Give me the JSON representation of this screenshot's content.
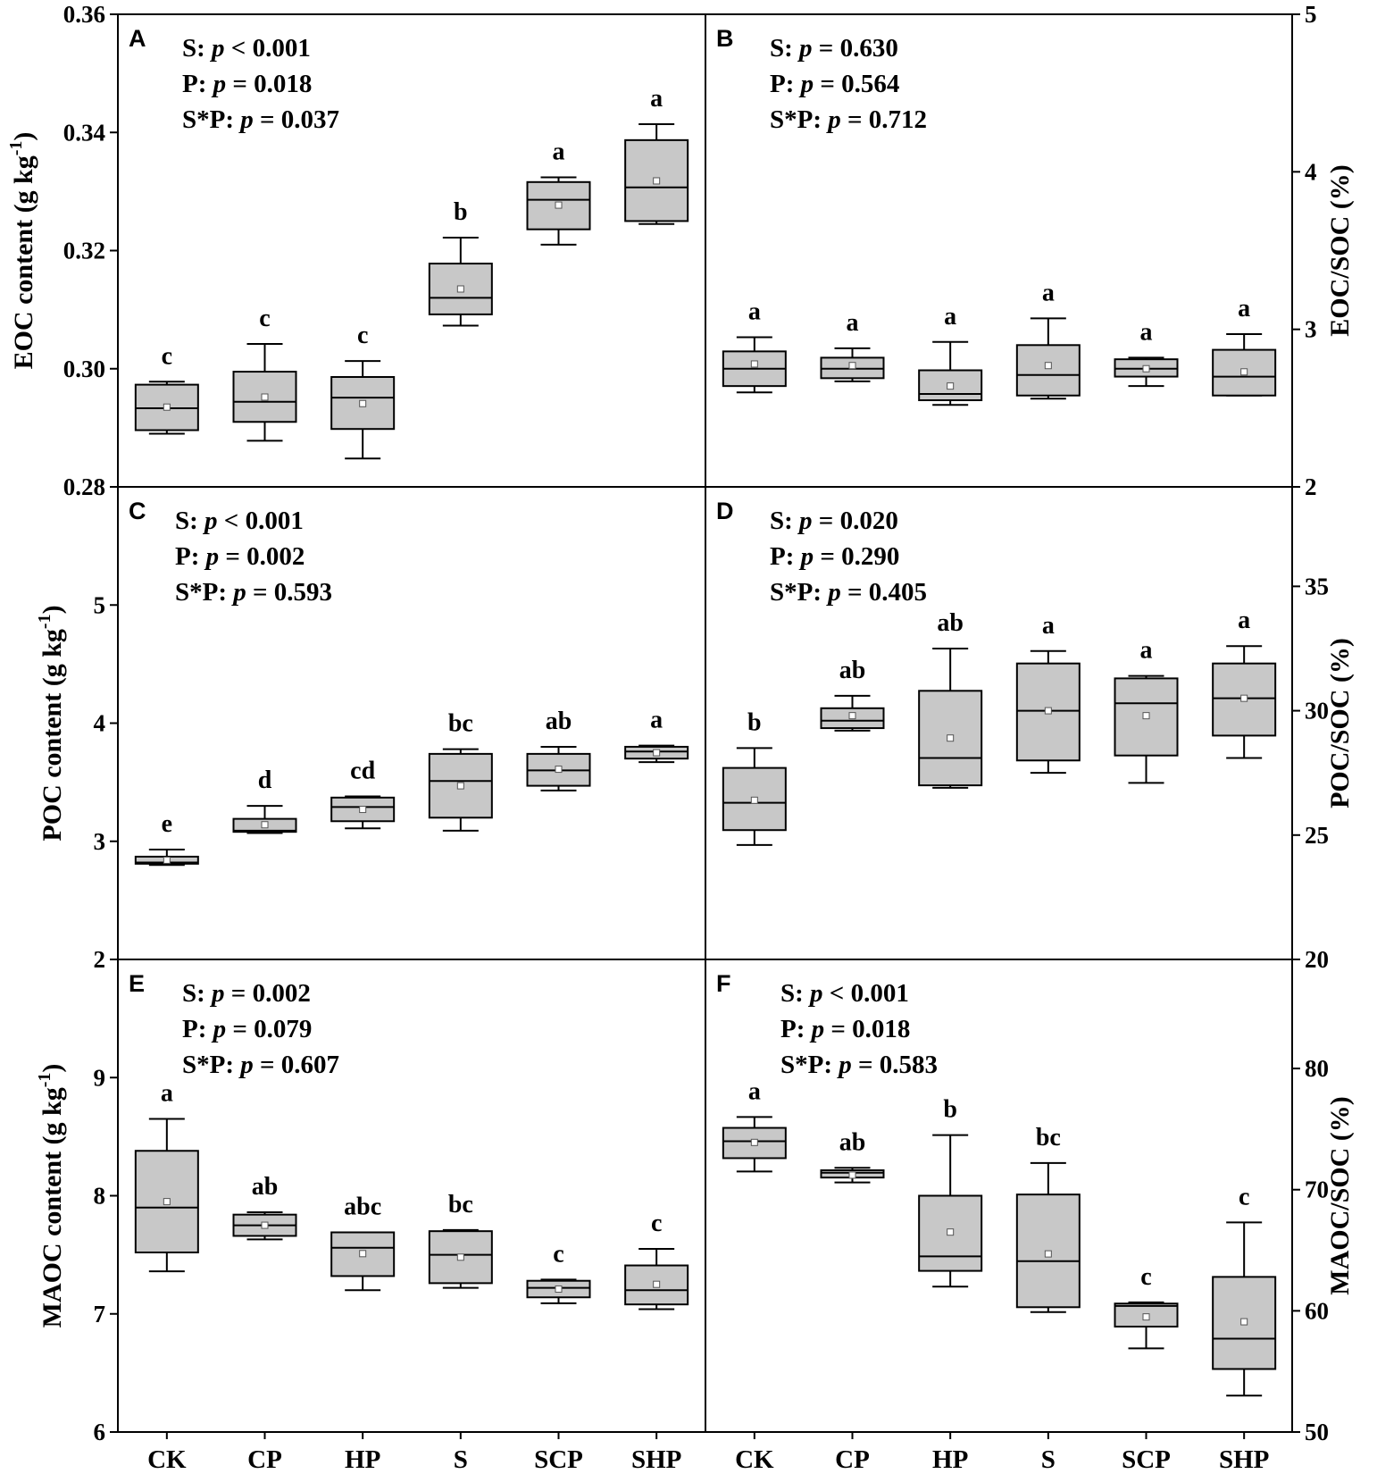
{
  "chart_data": [
    {
      "type": "box",
      "panel": "A",
      "ylabel": "EOC content (g kg-1)",
      "ylabel_main": "EOC content (g kg",
      "ylabel_sup": "-1",
      "ylabel_close": ")",
      "ylim": [
        0.28,
        0.36
      ],
      "ticks": [
        0.28,
        0.3,
        0.32,
        0.34,
        0.36
      ],
      "tick_labels": [
        "0.28",
        "0.30",
        "0.32",
        "0.34",
        "0.36"
      ],
      "stats": [
        {
          "term": "S: ",
          "p": "p",
          "rest": " < 0.001"
        },
        {
          "term": "P: ",
          "p": "p",
          "rest": " = 0.018"
        },
        {
          "term": "S*P: ",
          "p": "p",
          "rest": " = 0.037"
        }
      ],
      "boxes": [
        {
          "category": "CK",
          "min": 0.289,
          "q1": 0.2896,
          "median": 0.2933,
          "q3": 0.2973,
          "max": 0.2978,
          "mean": 0.2935,
          "sig": "c"
        },
        {
          "category": "CP",
          "min": 0.2878,
          "q1": 0.291,
          "median": 0.2944,
          "q3": 0.2995,
          "max": 0.3042,
          "mean": 0.2952,
          "sig": "c"
        },
        {
          "category": "HP",
          "min": 0.2848,
          "q1": 0.2898,
          "median": 0.2951,
          "q3": 0.2986,
          "max": 0.3013,
          "mean": 0.2941,
          "sig": "c"
        },
        {
          "category": "S",
          "min": 0.3073,
          "q1": 0.3092,
          "median": 0.312,
          "q3": 0.3178,
          "max": 0.3222,
          "mean": 0.3135,
          "sig": "b"
        },
        {
          "category": "SCP",
          "min": 0.321,
          "q1": 0.3236,
          "median": 0.3286,
          "q3": 0.3316,
          "max": 0.3324,
          "mean": 0.3277,
          "sig": "a"
        },
        {
          "category": "SHP",
          "min": 0.3245,
          "q1": 0.325,
          "median": 0.3307,
          "q3": 0.3387,
          "max": 0.3414,
          "mean": 0.3318,
          "sig": "a"
        }
      ]
    },
    {
      "type": "box",
      "panel": "B",
      "ylabel": "EOC/SOC (%)",
      "ylim": [
        2,
        5
      ],
      "ticks": [
        2,
        3,
        4,
        5
      ],
      "tick_labels": [
        "2",
        "3",
        "4",
        "5"
      ],
      "stats": [
        {
          "term": "S: ",
          "p": "p",
          "rest": " = 0.630"
        },
        {
          "term": "P: ",
          "p": "p",
          "rest": " = 0.564"
        },
        {
          "term": "S*P: ",
          "p": "p",
          "rest": " = 0.712"
        }
      ],
      "boxes": [
        {
          "category": "CK",
          "min": 2.6,
          "q1": 2.64,
          "median": 2.75,
          "q3": 2.86,
          "max": 2.95,
          "mean": 2.78,
          "sig": "a"
        },
        {
          "category": "CP",
          "min": 2.67,
          "q1": 2.69,
          "median": 2.75,
          "q3": 2.82,
          "max": 2.88,
          "mean": 2.77,
          "sig": "a"
        },
        {
          "category": "HP",
          "min": 2.52,
          "q1": 2.55,
          "median": 2.59,
          "q3": 2.74,
          "max": 2.92,
          "mean": 2.64,
          "sig": "a"
        },
        {
          "category": "S",
          "min": 2.56,
          "q1": 2.58,
          "median": 2.71,
          "q3": 2.9,
          "max": 3.07,
          "mean": 2.77,
          "sig": "a"
        },
        {
          "category": "SCP",
          "min": 2.64,
          "q1": 2.7,
          "median": 2.75,
          "q3": 2.81,
          "max": 2.82,
          "mean": 2.75,
          "sig": "a"
        },
        {
          "category": "SHP",
          "min": 2.58,
          "q1": 2.58,
          "median": 2.7,
          "q3": 2.87,
          "max": 2.97,
          "mean": 2.73,
          "sig": "a"
        }
      ]
    },
    {
      "type": "box",
      "panel": "C",
      "ylabel": "POC content (g kg-1)",
      "ylabel_main": "POC content (g kg",
      "ylabel_sup": "-1",
      "ylabel_close": ")",
      "ylim": [
        2,
        6
      ],
      "ticks": [
        2,
        3,
        4,
        5
      ],
      "tick_labels": [
        "2",
        "3",
        "4",
        "5"
      ],
      "stats": [
        {
          "term": "S: ",
          "p": "p",
          "rest": " < 0.001"
        },
        {
          "term": "P: ",
          "p": "p",
          "rest": " = 0.002"
        },
        {
          "term": "S*P: ",
          "p": "p",
          "rest": " = 0.593"
        }
      ],
      "boxes": [
        {
          "category": "CK",
          "min": 2.8,
          "q1": 2.81,
          "median": 2.82,
          "q3": 2.87,
          "max": 2.93,
          "mean": 2.84,
          "sig": "e"
        },
        {
          "category": "CP",
          "min": 3.07,
          "q1": 3.08,
          "median": 3.09,
          "q3": 3.19,
          "max": 3.3,
          "mean": 3.14,
          "sig": "d"
        },
        {
          "category": "HP",
          "min": 3.11,
          "q1": 3.17,
          "median": 3.29,
          "q3": 3.37,
          "max": 3.38,
          "mean": 3.27,
          "sig": "cd"
        },
        {
          "category": "S",
          "min": 3.09,
          "q1": 3.2,
          "median": 3.51,
          "q3": 3.74,
          "max": 3.78,
          "mean": 3.47,
          "sig": "bc"
        },
        {
          "category": "SCP",
          "min": 3.43,
          "q1": 3.47,
          "median": 3.6,
          "q3": 3.74,
          "max": 3.8,
          "mean": 3.61,
          "sig": "ab"
        },
        {
          "category": "SHP",
          "min": 3.67,
          "q1": 3.7,
          "median": 3.76,
          "q3": 3.8,
          "max": 3.81,
          "mean": 3.75,
          "sig": "a"
        }
      ]
    },
    {
      "type": "box",
      "panel": "D",
      "ylabel": "POC/SOC (%)",
      "ylim": [
        20,
        39
      ],
      "ticks": [
        20,
        25,
        30,
        35
      ],
      "tick_labels": [
        "20",
        "25",
        "30",
        "35"
      ],
      "stats": [
        {
          "term": "S: ",
          "p": "p",
          "rest": " = 0.020"
        },
        {
          "term": "P: ",
          "p": "p",
          "rest": " = 0.290"
        },
        {
          "term": "S*P: ",
          "p": "p",
          "rest": " = 0.405"
        }
      ],
      "boxes": [
        {
          "category": "CK",
          "min": 24.6,
          "q1": 25.2,
          "median": 26.3,
          "q3": 27.7,
          "max": 28.5,
          "mean": 26.4,
          "sig": "b"
        },
        {
          "category": "CP",
          "min": 29.2,
          "q1": 29.3,
          "median": 29.6,
          "q3": 30.1,
          "max": 30.6,
          "mean": 29.8,
          "sig": "ab"
        },
        {
          "category": "HP",
          "min": 26.9,
          "q1": 27.0,
          "median": 28.1,
          "q3": 30.8,
          "max": 32.5,
          "mean": 28.9,
          "sig": "ab"
        },
        {
          "category": "S",
          "min": 27.5,
          "q1": 28.0,
          "median": 30.0,
          "q3": 31.9,
          "max": 32.4,
          "mean": 30.0,
          "sig": "a"
        },
        {
          "category": "SCP",
          "min": 27.1,
          "q1": 28.2,
          "median": 30.3,
          "q3": 31.3,
          "max": 31.4,
          "mean": 29.8,
          "sig": "a"
        },
        {
          "category": "SHP",
          "min": 28.1,
          "q1": 29.0,
          "median": 30.5,
          "q3": 31.9,
          "max": 32.6,
          "mean": 30.5,
          "sig": "a"
        }
      ]
    },
    {
      "type": "box",
      "panel": "E",
      "ylabel": "MAOC content (g kg-1)",
      "ylabel_main": "MAOC content (g kg",
      "ylabel_sup": "-1",
      "ylabel_close": ")",
      "ylim": [
        6,
        10
      ],
      "ticks": [
        6,
        7,
        8,
        9
      ],
      "tick_labels": [
        "6",
        "7",
        "8",
        "9"
      ],
      "stats": [
        {
          "term": "S: ",
          "p": "p",
          "rest": " = 0.002"
        },
        {
          "term": "P: ",
          "p": "p",
          "rest": " = 0.079"
        },
        {
          "term": "S*P: ",
          "p": "p",
          "rest": " = 0.607"
        }
      ],
      "boxes": [
        {
          "category": "CK",
          "min": 7.36,
          "q1": 7.52,
          "median": 7.9,
          "q3": 8.38,
          "max": 8.65,
          "mean": 7.95,
          "sig": "a"
        },
        {
          "category": "CP",
          "min": 7.63,
          "q1": 7.66,
          "median": 7.75,
          "q3": 7.84,
          "max": 7.86,
          "mean": 7.75,
          "sig": "ab"
        },
        {
          "category": "HP",
          "min": 7.2,
          "q1": 7.32,
          "median": 7.56,
          "q3": 7.69,
          "max": 7.69,
          "mean": 7.51,
          "sig": "abc"
        },
        {
          "category": "S",
          "min": 7.22,
          "q1": 7.26,
          "median": 7.5,
          "q3": 7.7,
          "max": 7.71,
          "mean": 7.48,
          "sig": "bc"
        },
        {
          "category": "SCP",
          "min": 7.09,
          "q1": 7.14,
          "median": 7.22,
          "q3": 7.28,
          "max": 7.29,
          "mean": 7.21,
          "sig": "c"
        },
        {
          "category": "SHP",
          "min": 7.04,
          "q1": 7.08,
          "median": 7.2,
          "q3": 7.41,
          "max": 7.55,
          "mean": 7.25,
          "sig": "c"
        }
      ]
    },
    {
      "type": "box",
      "panel": "F",
      "ylabel": "MAOC/SOC (%)",
      "ylim": [
        50,
        89
      ],
      "ticks": [
        50,
        60,
        70,
        80
      ],
      "tick_labels": [
        "50",
        "60",
        "70",
        "80"
      ],
      "stats": [
        {
          "term": "S: ",
          "p": "p",
          "rest": " < 0.001"
        },
        {
          "term": "P: ",
          "p": "p",
          "rest": " = 0.018"
        },
        {
          "term": "S*P: ",
          "p": "p",
          "rest": " = 0.583"
        }
      ],
      "boxes": [
        {
          "category": "CK",
          "min": 71.5,
          "q1": 72.6,
          "median": 74.0,
          "q3": 75.1,
          "max": 76.0,
          "mean": 73.9,
          "sig": "a"
        },
        {
          "category": "CP",
          "min": 70.6,
          "q1": 71.0,
          "median": 71.4,
          "q3": 71.6,
          "max": 71.8,
          "mean": 71.2,
          "sig": "ab"
        },
        {
          "category": "HP",
          "min": 62.0,
          "q1": 63.3,
          "median": 64.5,
          "q3": 69.5,
          "max": 74.5,
          "mean": 66.5,
          "sig": "b"
        },
        {
          "category": "S",
          "min": 59.9,
          "q1": 60.3,
          "median": 64.1,
          "q3": 69.6,
          "max": 72.2,
          "mean": 64.7,
          "sig": "bc"
        },
        {
          "category": "SCP",
          "min": 56.9,
          "q1": 58.7,
          "median": 60.4,
          "q3": 60.6,
          "max": 60.7,
          "mean": 59.5,
          "sig": "c"
        },
        {
          "category": "SHP",
          "min": 53.0,
          "q1": 55.2,
          "median": 57.7,
          "q3": 62.8,
          "max": 67.3,
          "mean": 59.1,
          "sig": "c"
        }
      ]
    }
  ],
  "categories": [
    "CK",
    "CP",
    "HP",
    "S",
    "SCP",
    "SHP"
  ],
  "style": {
    "box_fill": "#c8c8c8",
    "line_color": "#000000",
    "background": "#ffffff"
  }
}
